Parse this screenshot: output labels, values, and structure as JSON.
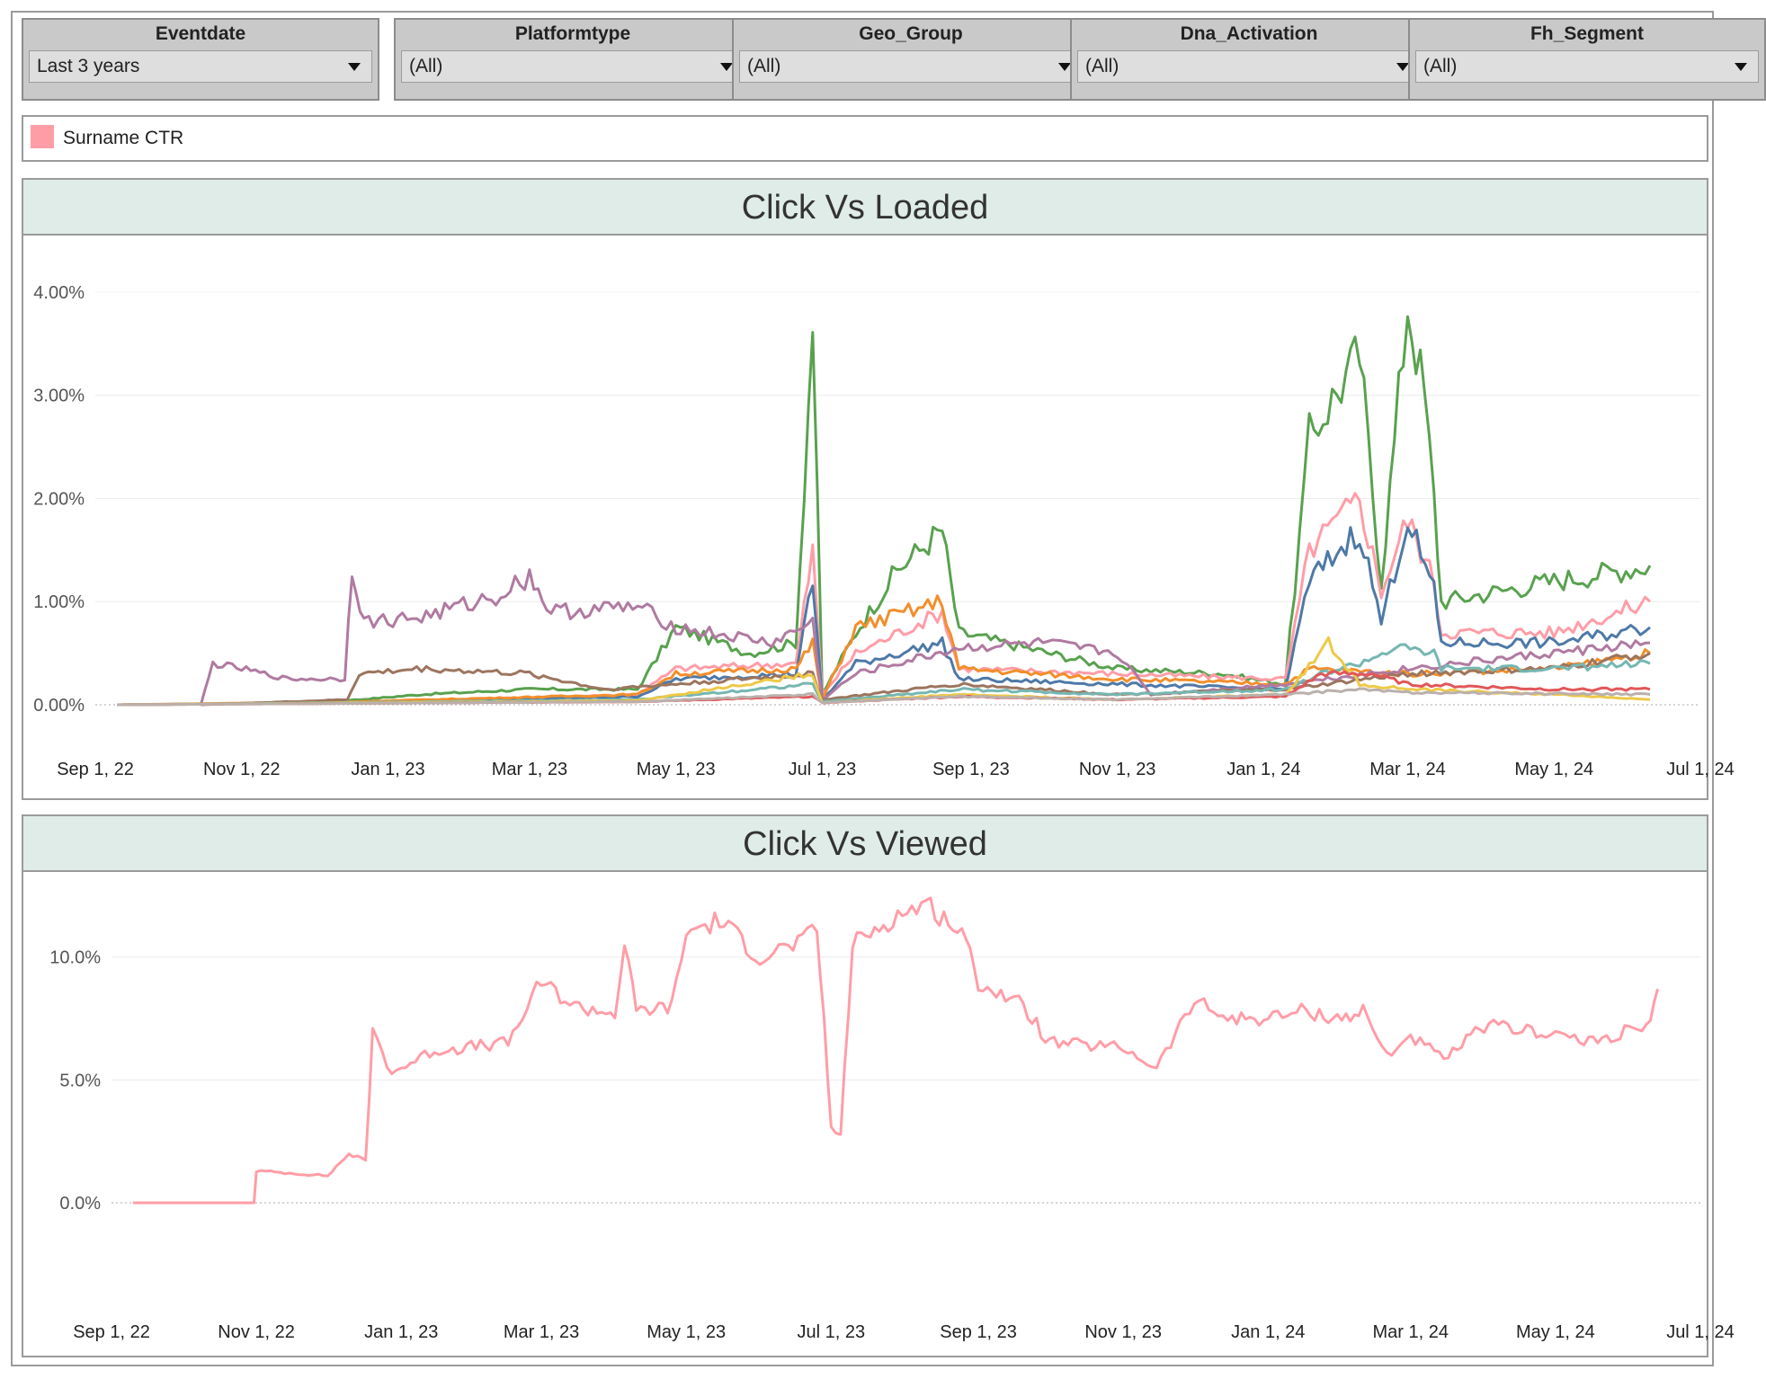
{
  "filters": [
    {
      "label": "Eventdate",
      "value": "Last 3 years"
    },
    {
      "label": "Platformtype",
      "value": "(All)"
    },
    {
      "label": "Geo_Group",
      "value": "(All)"
    },
    {
      "label": "Dna_Activation",
      "value": "(All)"
    },
    {
      "label": "Fh_Segment",
      "value": "(All)"
    }
  ],
  "legend": {
    "label": "Surname CTR",
    "color": "#ff9da7"
  },
  "chart_data": [
    {
      "title": "Click Vs Loaded",
      "type": "line",
      "xlabel": "",
      "ylabel": "",
      "x_ticks": [
        "Sep 1, 22",
        "Nov 1, 22",
        "Jan 1, 23",
        "Mar 1, 23",
        "May 1, 23",
        "Jul 1, 23",
        "Sep 1, 23",
        "Nov 1, 23",
        "Jan 1, 24",
        "Mar 1, 24",
        "May 1, 24",
        "Jul 1, 24"
      ],
      "y_ticks": [
        "0.00%",
        "1.00%",
        "2.00%",
        "3.00%",
        "4.00%"
      ],
      "ylim": [
        0,
        4.2
      ],
      "grid": true,
      "series": [
        {
          "color": "#59a14f",
          "points": [
            [
              "2022-09-10",
              0
            ],
            [
              "2022-11-01",
              0.01
            ],
            [
              "2022-12-20",
              0.05
            ],
            [
              "2023-01-15",
              0.1
            ],
            [
              "2023-03-01",
              0.15
            ],
            [
              "2023-04-15",
              0.15
            ],
            [
              "2023-05-01",
              0.75
            ],
            [
              "2023-06-01",
              0.5
            ],
            [
              "2023-06-20",
              0.6
            ],
            [
              "2023-06-27",
              3.7
            ],
            [
              "2023-07-01",
              0.1
            ],
            [
              "2023-07-15",
              0.7
            ],
            [
              "2023-08-01",
              1.3
            ],
            [
              "2023-08-20",
              1.7
            ],
            [
              "2023-08-27",
              0.7
            ],
            [
              "2023-09-15",
              0.6
            ],
            [
              "2023-11-01",
              0.35
            ],
            [
              "2023-12-15",
              0.3
            ],
            [
              "2024-01-10",
              0.2
            ],
            [
              "2024-01-20",
              2.6
            ],
            [
              "2024-02-10",
              3.4
            ],
            [
              "2024-02-19",
              1.2
            ],
            [
              "2024-03-01",
              3.9
            ],
            [
              "2024-03-08",
              3.0
            ],
            [
              "2024-03-12",
              2.0
            ],
            [
              "2024-03-15",
              1.0
            ],
            [
              "2024-05-01",
              1.2
            ],
            [
              "2024-06-10",
              1.35
            ]
          ]
        },
        {
          "color": "#ff9da7",
          "points": [
            [
              "2022-09-10",
              0
            ],
            [
              "2022-12-15",
              0.02
            ],
            [
              "2023-04-15",
              0.1
            ],
            [
              "2023-05-01",
              0.35
            ],
            [
              "2023-06-20",
              0.4
            ],
            [
              "2023-06-27",
              1.5
            ],
            [
              "2023-07-01",
              0.1
            ],
            [
              "2023-07-15",
              0.5
            ],
            [
              "2023-08-20",
              0.9
            ],
            [
              "2023-08-27",
              0.35
            ],
            [
              "2023-11-01",
              0.3
            ],
            [
              "2024-01-10",
              0.25
            ],
            [
              "2024-01-20",
              1.5
            ],
            [
              "2024-02-10",
              2.0
            ],
            [
              "2024-02-19",
              1.1
            ],
            [
              "2024-03-01",
              1.8
            ],
            [
              "2024-03-12",
              1.2
            ],
            [
              "2024-03-15",
              0.7
            ],
            [
              "2024-05-01",
              0.7
            ],
            [
              "2024-06-10",
              1.0
            ]
          ]
        },
        {
          "color": "#4e79a7",
          "points": [
            [
              "2022-09-10",
              0
            ],
            [
              "2022-12-15",
              0.02
            ],
            [
              "2023-04-15",
              0.08
            ],
            [
              "2023-05-01",
              0.25
            ],
            [
              "2023-06-20",
              0.3
            ],
            [
              "2023-06-27",
              1.2
            ],
            [
              "2023-07-01",
              0.05
            ],
            [
              "2023-07-15",
              0.4
            ],
            [
              "2023-08-20",
              0.6
            ],
            [
              "2023-08-27",
              0.25
            ],
            [
              "2023-11-01",
              0.2
            ],
            [
              "2024-01-10",
              0.15
            ],
            [
              "2024-01-20",
              1.2
            ],
            [
              "2024-02-10",
              1.7
            ],
            [
              "2024-02-19",
              0.8
            ],
            [
              "2024-03-01",
              1.8
            ],
            [
              "2024-03-12",
              1.1
            ],
            [
              "2024-03-15",
              0.6
            ],
            [
              "2024-05-01",
              0.6
            ],
            [
              "2024-06-10",
              0.75
            ]
          ]
        },
        {
          "color": "#f28e2b",
          "points": [
            [
              "2022-09-10",
              0
            ],
            [
              "2022-12-15",
              0.03
            ],
            [
              "2023-04-15",
              0.1
            ],
            [
              "2023-05-01",
              0.3
            ],
            [
              "2023-06-20",
              0.35
            ],
            [
              "2023-06-27",
              0.6
            ],
            [
              "2023-07-01",
              0.05
            ],
            [
              "2023-07-15",
              0.75
            ],
            [
              "2023-08-20",
              1.0
            ],
            [
              "2023-08-27",
              0.35
            ],
            [
              "2023-11-01",
              0.25
            ],
            [
              "2024-01-10",
              0.2
            ],
            [
              "2024-01-20",
              0.35
            ],
            [
              "2024-03-01",
              0.3
            ],
            [
              "2024-05-01",
              0.35
            ],
            [
              "2024-06-10",
              0.5
            ]
          ]
        },
        {
          "color": "#b07aa1",
          "points": [
            [
              "2022-10-15",
              0
            ],
            [
              "2022-10-20",
              0.4
            ],
            [
              "2022-11-01",
              0.35
            ],
            [
              "2022-11-20",
              0.25
            ],
            [
              "2022-12-14",
              0.25
            ],
            [
              "2022-12-17",
              1.35
            ],
            [
              "2022-12-22",
              0.8
            ],
            [
              "2023-01-15",
              0.85
            ],
            [
              "2023-02-15",
              1.05
            ],
            [
              "2023-03-01",
              1.25
            ],
            [
              "2023-03-10",
              0.9
            ],
            [
              "2023-04-15",
              0.95
            ],
            [
              "2023-05-01",
              0.75
            ],
            [
              "2023-06-10",
              0.6
            ],
            [
              "2023-06-27",
              0.8
            ],
            [
              "2023-07-01",
              0.05
            ],
            [
              "2023-07-15",
              0.3
            ],
            [
              "2023-08-27",
              0.55
            ],
            [
              "2023-10-01",
              0.6
            ],
            [
              "2023-11-01",
              0.5
            ],
            [
              "2023-11-15",
              0.1
            ],
            [
              "2024-01-10",
              0.2
            ],
            [
              "2024-03-01",
              0.35
            ],
            [
              "2024-05-01",
              0.5
            ],
            [
              "2024-06-10",
              0.6
            ]
          ]
        },
        {
          "color": "#9c755f",
          "points": [
            [
              "2022-10-15",
              0
            ],
            [
              "2022-12-15",
              0.05
            ],
            [
              "2022-12-20",
              0.3
            ],
            [
              "2023-01-15",
              0.35
            ],
            [
              "2023-03-01",
              0.3
            ],
            [
              "2023-04-01",
              0.15
            ],
            [
              "2023-05-01",
              0.2
            ],
            [
              "2023-06-27",
              0.3
            ],
            [
              "2023-07-01",
              0.05
            ],
            [
              "2023-08-27",
              0.2
            ],
            [
              "2023-11-01",
              0.1
            ],
            [
              "2024-01-10",
              0.15
            ],
            [
              "2024-03-01",
              0.3
            ],
            [
              "2024-05-01",
              0.35
            ],
            [
              "2024-06-10",
              0.5
            ]
          ]
        },
        {
          "color": "#76b7b2",
          "points": [
            [
              "2022-09-10",
              0
            ],
            [
              "2023-04-15",
              0.05
            ],
            [
              "2023-06-27",
              0.2
            ],
            [
              "2023-07-01",
              0.03
            ],
            [
              "2023-08-27",
              0.15
            ],
            [
              "2023-11-01",
              0.1
            ],
            [
              "2024-01-10",
              0.15
            ],
            [
              "2024-01-25",
              0.3
            ],
            [
              "2024-02-10",
              0.4
            ],
            [
              "2024-02-25",
              0.55
            ],
            [
              "2024-03-12",
              0.5
            ],
            [
              "2024-03-15",
              0.35
            ],
            [
              "2024-05-01",
              0.35
            ],
            [
              "2024-06-10",
              0.4
            ]
          ]
        },
        {
          "color": "#edc948",
          "points": [
            [
              "2022-09-10",
              0
            ],
            [
              "2023-04-15",
              0.04
            ],
            [
              "2023-06-27",
              0.3
            ],
            [
              "2023-07-01",
              0.02
            ],
            [
              "2023-08-27",
              0.1
            ],
            [
              "2023-11-01",
              0.05
            ],
            [
              "2024-01-10",
              0.1
            ],
            [
              "2024-01-28",
              0.6
            ],
            [
              "2024-02-10",
              0.2
            ],
            [
              "2024-03-01",
              0.15
            ],
            [
              "2024-05-01",
              0.1
            ],
            [
              "2024-06-10",
              0.05
            ]
          ]
        },
        {
          "color": "#e15759",
          "points": [
            [
              "2022-09-10",
              0
            ],
            [
              "2023-04-15",
              0.03
            ],
            [
              "2023-06-27",
              0.08
            ],
            [
              "2023-07-01",
              0.02
            ],
            [
              "2023-08-27",
              0.08
            ],
            [
              "2023-11-01",
              0.05
            ],
            [
              "2024-01-10",
              0.08
            ],
            [
              "2024-01-25",
              0.3
            ],
            [
              "2024-02-15",
              0.3
            ],
            [
              "2024-03-01",
              0.2
            ],
            [
              "2024-05-01",
              0.15
            ],
            [
              "2024-06-10",
              0.15
            ]
          ]
        },
        {
          "color": "#bab0ac",
          "points": [
            [
              "2022-09-10",
              0
            ],
            [
              "2023-04-15",
              0.03
            ],
            [
              "2023-06-27",
              0.1
            ],
            [
              "2023-07-01",
              0.02
            ],
            [
              "2023-08-27",
              0.08
            ],
            [
              "2023-11-01",
              0.05
            ],
            [
              "2024-01-10",
              0.1
            ],
            [
              "2024-02-10",
              0.15
            ],
            [
              "2024-03-01",
              0.12
            ],
            [
              "2024-06-10",
              0.1
            ]
          ]
        }
      ]
    },
    {
      "title": "Click Vs Viewed",
      "type": "line",
      "xlabel": "",
      "ylabel": "",
      "x_ticks": [
        "Sep 1, 22",
        "Nov 1, 22",
        "Jan 1, 23",
        "Mar 1, 23",
        "May 1, 23",
        "Jul 1, 23",
        "Sep 1, 23",
        "Nov 1, 23",
        "Jan 1, 24",
        "Mar 1, 24",
        "May 1, 24",
        "Jul 1, 24"
      ],
      "y_ticks": [
        "0.0%",
        "5.0%",
        "10.0%"
      ],
      "ylim": [
        0,
        12.8
      ],
      "grid": true,
      "series": [
        {
          "color": "#ff9da7",
          "points": [
            [
              "2022-09-10",
              0
            ],
            [
              "2022-10-31",
              0
            ],
            [
              "2022-11-01",
              1.3
            ],
            [
              "2022-12-01",
              1.1
            ],
            [
              "2022-12-10",
              2.0
            ],
            [
              "2022-12-17",
              1.7
            ],
            [
              "2022-12-20",
              7.0
            ],
            [
              "2022-12-28",
              5.3
            ],
            [
              "2023-01-15",
              6.2
            ],
            [
              "2023-02-15",
              6.5
            ],
            [
              "2023-03-01",
              9.0
            ],
            [
              "2023-03-15",
              8.0
            ],
            [
              "2023-04-01",
              7.7
            ],
            [
              "2023-04-05",
              10.5
            ],
            [
              "2023-04-10",
              7.8
            ],
            [
              "2023-04-25",
              8.0
            ],
            [
              "2023-05-01",
              11.0
            ],
            [
              "2023-05-15",
              11.5
            ],
            [
              "2023-06-01",
              10.0
            ],
            [
              "2023-06-15",
              10.5
            ],
            [
              "2023-06-25",
              11.0
            ],
            [
              "2023-06-28",
              7.5
            ],
            [
              "2023-07-01",
              3.0
            ],
            [
              "2023-07-05",
              2.8
            ],
            [
              "2023-07-10",
              10.5
            ],
            [
              "2023-07-25",
              11.5
            ],
            [
              "2023-08-10",
              12.2
            ],
            [
              "2023-08-25",
              11.0
            ],
            [
              "2023-09-01",
              9.0
            ],
            [
              "2023-09-20",
              8.0
            ],
            [
              "2023-10-01",
              6.5
            ],
            [
              "2023-11-01",
              6.3
            ],
            [
              "2023-11-15",
              5.5
            ],
            [
              "2023-12-01",
              8.2
            ],
            [
              "2023-12-15",
              7.5
            ],
            [
              "2024-01-01",
              7.5
            ],
            [
              "2024-01-15",
              7.8
            ],
            [
              "2024-02-01",
              7.5
            ],
            [
              "2024-02-10",
              7.8
            ],
            [
              "2024-02-20",
              6.0
            ],
            [
              "2024-03-01",
              6.8
            ],
            [
              "2024-03-15",
              5.8
            ],
            [
              "2024-04-01",
              7.2
            ],
            [
              "2024-05-01",
              6.9
            ],
            [
              "2024-05-15",
              6.5
            ],
            [
              "2024-06-01",
              7.0
            ],
            [
              "2024-06-10",
              7.2
            ],
            [
              "2024-06-13",
              8.7
            ]
          ]
        }
      ]
    }
  ]
}
